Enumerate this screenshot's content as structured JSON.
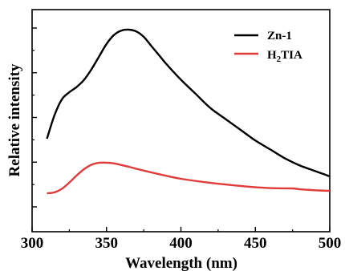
{
  "chart_data": {
    "type": "line",
    "title": "",
    "xlabel": "Wavelength (nm)",
    "ylabel": "Relative intensity",
    "xlim": [
      300,
      500
    ],
    "ylim": [
      0,
      100
    ],
    "x_ticks": [
      "300",
      "350",
      "400",
      "450",
      "500"
    ],
    "y_ticks_labeled": false,
    "grid": false,
    "legend_position": "top-right",
    "series": [
      {
        "name": "Zn-1",
        "color": "#000000",
        "x": [
          310,
          315,
          320,
          325,
          330,
          335,
          340,
          345,
          350,
          355,
          360,
          365,
          370,
          375,
          380,
          385,
          390,
          400,
          410,
          420,
          430,
          440,
          450,
          460,
          470,
          480,
          490,
          500
        ],
        "y": [
          39,
          52,
          61,
          65,
          68,
          72,
          78,
          85,
          92,
          97,
          99.5,
          100,
          99,
          96,
          91,
          86,
          81,
          72,
          64,
          56,
          50,
          44,
          38,
          33,
          28,
          24,
          21,
          18
        ]
      },
      {
        "name": "H2TIA",
        "color": "#e03a3a",
        "x": [
          310,
          315,
          320,
          325,
          330,
          335,
          340,
          345,
          350,
          355,
          360,
          365,
          370,
          380,
          390,
          400,
          420,
          440,
          460,
          475,
          480,
          490,
          500
        ],
        "y": [
          8.5,
          9,
          11,
          14.5,
          18.5,
          22,
          24.5,
          25.5,
          25.6,
          25.2,
          24.3,
          23.3,
          22.2,
          20.2,
          18.3,
          16.6,
          14.3,
          12.6,
          11.4,
          11.2,
          10.7,
          10.2,
          9.8
        ]
      }
    ]
  },
  "legend": {
    "zn_label": "Zn-1",
    "h2tia_parts": [
      "H",
      "2",
      "TIA"
    ]
  }
}
